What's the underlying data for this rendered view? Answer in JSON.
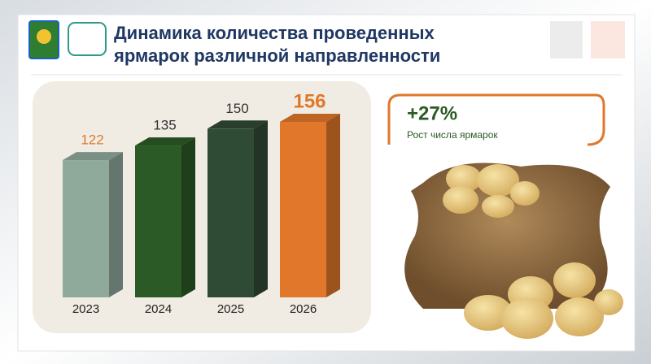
{
  "chart_data": {
    "type": "bar3d",
    "title": "Динамика количества проведенных ярмарок различной направленности",
    "categories": [
      "2023",
      "2024",
      "2025",
      "2026"
    ],
    "values": [
      122,
      135,
      150,
      156
    ],
    "colors": [
      "#8fa99b",
      "#2c5a26",
      "#2f4a35",
      "#e0772b"
    ],
    "annotation": {
      "value": "+27%",
      "text": "Рост числа ярмарок"
    }
  }
}
